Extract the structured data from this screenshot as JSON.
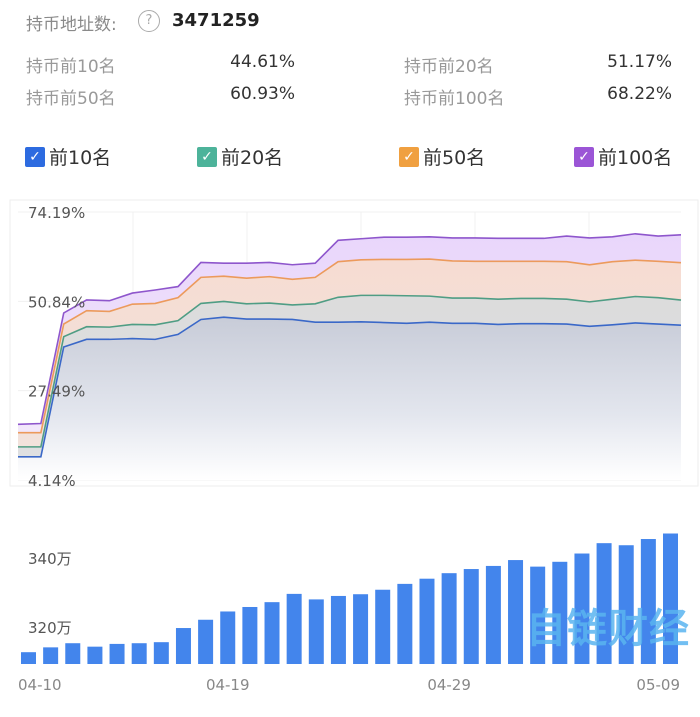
{
  "header": {
    "label": "持币地址数:",
    "help_icon": "?",
    "value": "3471259"
  },
  "stats": [
    {
      "label": "持币前10名",
      "value": "44.61%"
    },
    {
      "label": "持币前20名",
      "value": "51.17%"
    },
    {
      "label": "持币前50名",
      "value": "60.93%"
    },
    {
      "label": "持币前100名",
      "value": "68.22%"
    }
  ],
  "legend": [
    {
      "label": "前10名",
      "color": "#2d6be0",
      "checked": true
    },
    {
      "label": "前20名",
      "color": "#4db39a",
      "checked": true
    },
    {
      "label": "前50名",
      "color": "#f0a040",
      "checked": true
    },
    {
      "label": "前100名",
      "color": "#9b55d6",
      "checked": true
    }
  ],
  "watermark": "自链财经",
  "chart_data": [
    {
      "type": "area",
      "ylim": [
        4.14,
        74.19
      ],
      "yticks": [
        "74.19%",
        "50.84%",
        "27.49%",
        "4.14%"
      ],
      "ytick_values": [
        74.19,
        50.84,
        27.49,
        4.14
      ],
      "grid": true,
      "series": [
        {
          "name": "前100名",
          "color": "#8e56cc",
          "values": [
            18.7,
            18.9,
            47.8,
            51.2,
            51.0,
            53.0,
            53.8,
            54.7,
            61.0,
            60.8,
            60.8,
            61.0,
            60.4,
            60.8,
            66.8,
            67.2,
            67.6,
            67.6,
            67.7,
            67.4,
            67.4,
            67.3,
            67.3,
            67.3,
            67.9,
            67.4,
            67.7,
            68.5,
            67.9,
            68.22
          ]
        },
        {
          "name": "前50名",
          "color": "#ec9a5c",
          "values": [
            16.5,
            16.5,
            44.9,
            48.4,
            48.2,
            50.1,
            50.3,
            51.8,
            57.1,
            57.4,
            56.9,
            57.3,
            56.6,
            57.1,
            61.2,
            61.7,
            61.8,
            61.8,
            61.9,
            61.4,
            61.3,
            61.3,
            61.3,
            61.3,
            61.2,
            60.4,
            61.2,
            61.6,
            61.3,
            60.93
          ]
        },
        {
          "name": "前20名",
          "color": "#4f9d84",
          "values": [
            12.8,
            12.8,
            41.6,
            44.2,
            44.1,
            44.8,
            44.7,
            45.8,
            50.3,
            50.8,
            50.2,
            50.4,
            49.9,
            50.2,
            51.9,
            52.4,
            52.4,
            52.3,
            52.2,
            51.7,
            51.7,
            51.4,
            51.6,
            51.6,
            51.4,
            50.7,
            51.4,
            52.1,
            51.8,
            51.17
          ]
        },
        {
          "name": "前10名",
          "color": "#3a68c8",
          "values": [
            10.2,
            10.2,
            38.9,
            40.9,
            40.9,
            41.1,
            40.9,
            42.2,
            46.1,
            46.7,
            46.2,
            46.2,
            46.1,
            45.4,
            45.4,
            45.5,
            45.3,
            45.1,
            45.4,
            45.1,
            45.1,
            44.8,
            45.0,
            45.0,
            44.9,
            44.3,
            44.7,
            45.2,
            44.9,
            44.61
          ]
        }
      ]
    },
    {
      "type": "bar",
      "unit": "万",
      "color": "#4385ec",
      "yticks": [
        "340万",
        "320万"
      ],
      "ytick_values": [
        340,
        320
      ],
      "xticks": [
        "04-10",
        "04-19",
        "04-29",
        "05-09"
      ],
      "xtick_index": [
        0,
        9,
        19,
        29
      ],
      "values": [
        312.7,
        314.1,
        315.3,
        314.3,
        315.1,
        315.3,
        315.6,
        319.7,
        322.1,
        324.5,
        325.8,
        327.2,
        329.6,
        328.0,
        329.0,
        329.5,
        330.8,
        332.5,
        334.0,
        335.6,
        336.8,
        337.7,
        339.4,
        337.5,
        338.9,
        341.3,
        344.3,
        343.7,
        345.5,
        347.1
      ]
    }
  ]
}
